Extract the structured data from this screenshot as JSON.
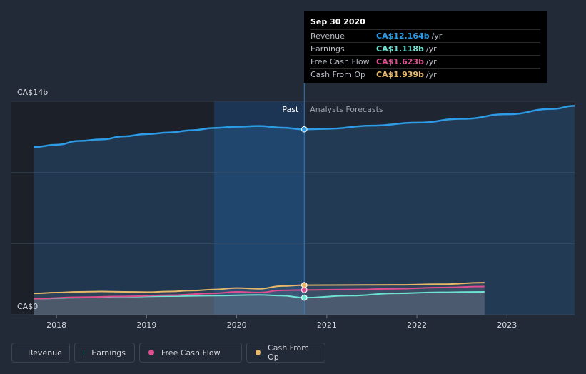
{
  "tooltip": {
    "date": "Sep 30 2020",
    "rows": [
      {
        "label": "Revenue",
        "value": "CA$12.164b",
        "unit": "/yr",
        "color": "#2e9be6"
      },
      {
        "label": "Earnings",
        "value": "CA$1.118b",
        "unit": "/yr",
        "color": "#6de3d2"
      },
      {
        "label": "Free Cash Flow",
        "value": "CA$1.623b",
        "unit": "/yr",
        "color": "#dd4f8f"
      },
      {
        "label": "Cash From Op",
        "value": "CA$1.939b",
        "unit": "/yr",
        "color": "#e8b86a"
      }
    ]
  },
  "legend": [
    {
      "label": "Revenue",
      "color": "#2e9be6"
    },
    {
      "label": "Earnings",
      "color": "#6de3d2"
    },
    {
      "label": "Free Cash Flow",
      "color": "#dd4f8f"
    },
    {
      "label": "Cash From Op",
      "color": "#e8b86a"
    }
  ],
  "chart_data": {
    "type": "area",
    "y_max_label": "CA$14b",
    "y_min_label": "CA$0",
    "past_label": "Past",
    "forecast_label": "Analysts Forecasts",
    "ylim": [
      0,
      14
    ],
    "xlim": [
      2017.5,
      2023.75
    ],
    "x_ticks": [
      2018,
      2019,
      2020,
      2021,
      2022,
      2023
    ],
    "divider_x": 2020.75,
    "highlight_start": 2019.75,
    "series": [
      {
        "name": "Revenue",
        "color": "#2e9be6",
        "points": [
          [
            2017.75,
            11.0
          ],
          [
            2018.0,
            11.15
          ],
          [
            2018.25,
            11.4
          ],
          [
            2018.5,
            11.5
          ],
          [
            2018.75,
            11.7
          ],
          [
            2019.0,
            11.85
          ],
          [
            2019.25,
            11.95
          ],
          [
            2019.5,
            12.1
          ],
          [
            2019.75,
            12.25
          ],
          [
            2020.0,
            12.33
          ],
          [
            2020.25,
            12.38
          ],
          [
            2020.5,
            12.27
          ],
          [
            2020.75,
            12.164
          ],
          [
            2021.0,
            12.2
          ],
          [
            2021.5,
            12.4
          ],
          [
            2022.0,
            12.6
          ],
          [
            2022.5,
            12.85
          ],
          [
            2023.0,
            13.15
          ],
          [
            2023.5,
            13.5
          ],
          [
            2023.75,
            13.7
          ]
        ]
      },
      {
        "name": "Earnings",
        "color": "#6de3d2",
        "points": [
          [
            2017.75,
            1.05
          ],
          [
            2018.25,
            1.12
          ],
          [
            2018.75,
            1.18
          ],
          [
            2019.25,
            1.22
          ],
          [
            2019.75,
            1.25
          ],
          [
            2020.25,
            1.3
          ],
          [
            2020.5,
            1.25
          ],
          [
            2020.75,
            1.118
          ],
          [
            2021.25,
            1.25
          ],
          [
            2021.75,
            1.4
          ],
          [
            2022.25,
            1.47
          ],
          [
            2022.75,
            1.5
          ]
        ]
      },
      {
        "name": "Free Cash Flow",
        "color": "#dd4f8f",
        "points": [
          [
            2017.75,
            1.05
          ],
          [
            2018.25,
            1.15
          ],
          [
            2018.75,
            1.2
          ],
          [
            2019.25,
            1.28
          ],
          [
            2019.75,
            1.4
          ],
          [
            2020.0,
            1.5
          ],
          [
            2020.25,
            1.45
          ],
          [
            2020.5,
            1.6
          ],
          [
            2020.75,
            1.623
          ],
          [
            2021.25,
            1.65
          ],
          [
            2021.75,
            1.7
          ],
          [
            2022.25,
            1.78
          ],
          [
            2022.75,
            1.85
          ]
        ]
      },
      {
        "name": "Cash From Op",
        "color": "#e8b86a",
        "points": [
          [
            2017.75,
            1.4
          ],
          [
            2018.0,
            1.45
          ],
          [
            2018.25,
            1.5
          ],
          [
            2018.5,
            1.52
          ],
          [
            2018.75,
            1.5
          ],
          [
            2019.0,
            1.48
          ],
          [
            2019.25,
            1.52
          ],
          [
            2019.5,
            1.58
          ],
          [
            2019.75,
            1.65
          ],
          [
            2020.0,
            1.75
          ],
          [
            2020.25,
            1.7
          ],
          [
            2020.5,
            1.88
          ],
          [
            2020.75,
            1.939
          ],
          [
            2021.25,
            1.95
          ],
          [
            2021.75,
            1.96
          ],
          [
            2022.25,
            2.0
          ],
          [
            2022.75,
            2.1
          ]
        ]
      }
    ]
  }
}
